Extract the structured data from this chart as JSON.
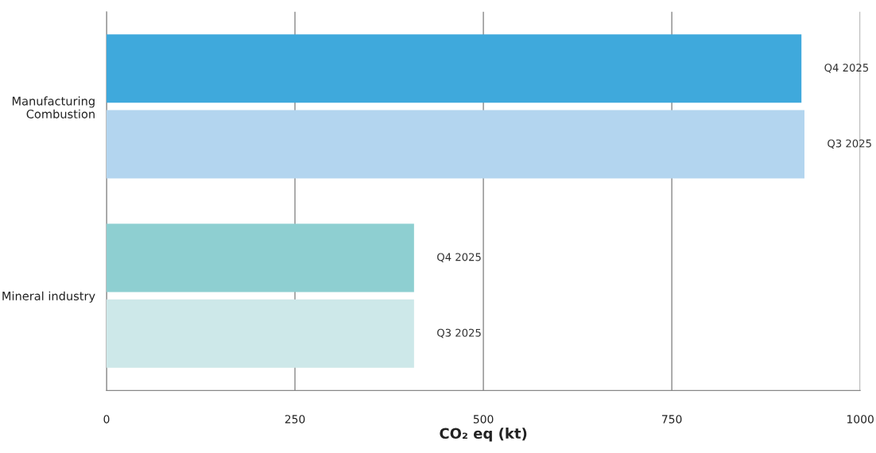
{
  "chart_data": {
    "type": "bar",
    "orientation": "horizontal",
    "xlabel": "CO₂ eq (kt)",
    "categories": [
      "Manufacturing Combustion",
      "Mineral industry"
    ],
    "series": [
      {
        "name": "Q4 2025",
        "colors": [
          "#3fa9dc",
          "#8ecfd1"
        ],
        "values": [
          922,
          408
        ]
      },
      {
        "name": "Q3 2025",
        "colors": [
          "#b3d5ef",
          "#cde8e9"
        ],
        "values": [
          926,
          408
        ]
      }
    ],
    "xlim": [
      0,
      1000
    ],
    "xticks": [
      0,
      250,
      500,
      750,
      1000
    ],
    "grid": "x",
    "legend": false
  }
}
